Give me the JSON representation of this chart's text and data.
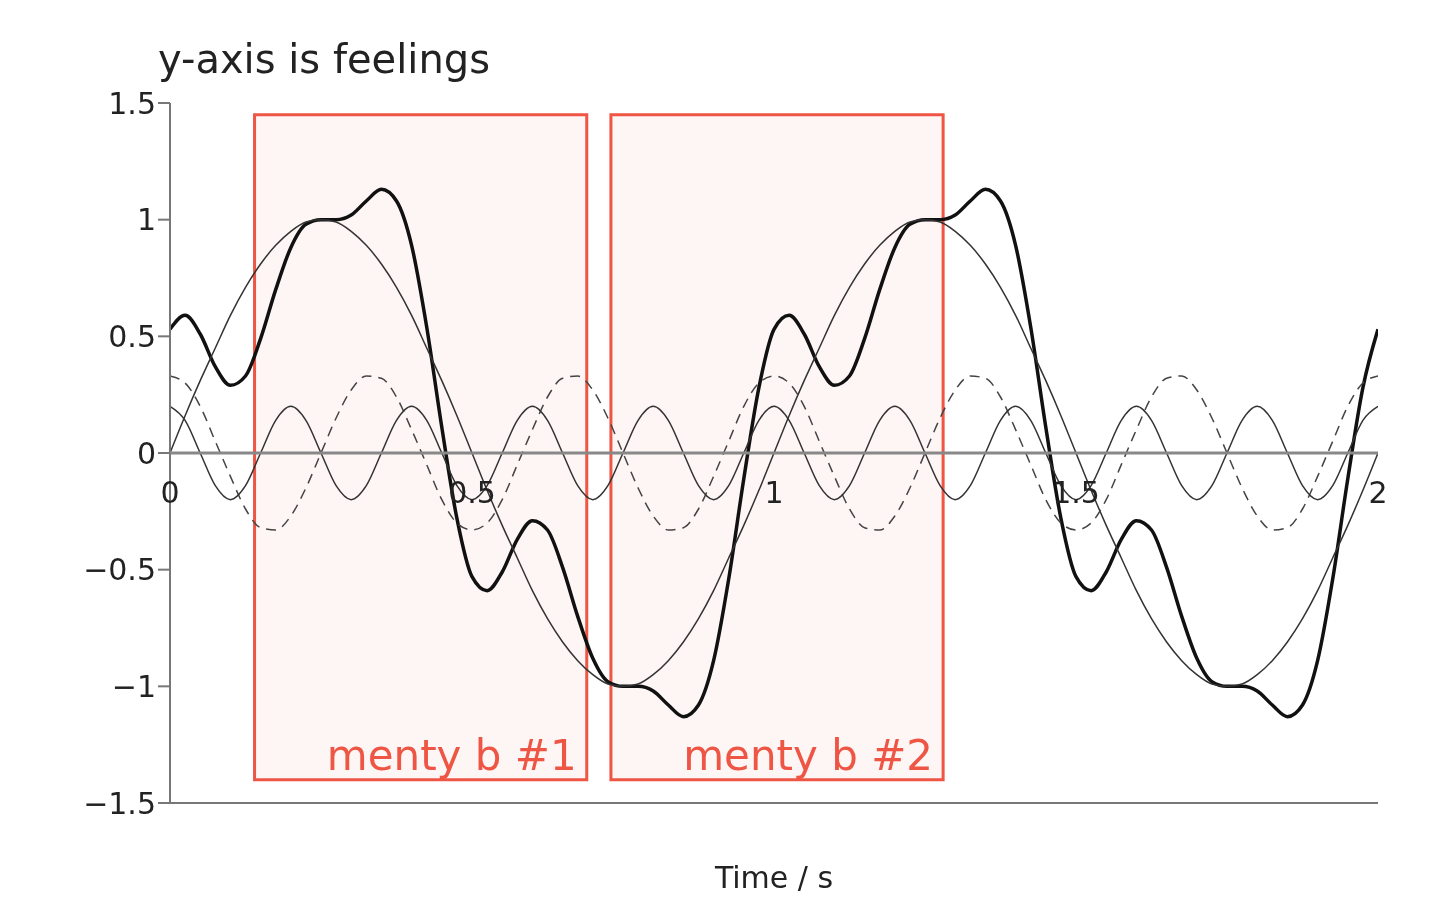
{
  "chart_data": {
    "type": "line",
    "title": "y-axis is feelings",
    "xlabel": "Time / s",
    "x": [
      0,
      0.025,
      0.05,
      0.075,
      0.1,
      0.125,
      0.15,
      0.175,
      0.2,
      0.225,
      0.25,
      0.275,
      0.3,
      0.325,
      0.35,
      0.375,
      0.4,
      0.425,
      0.45,
      0.475,
      0.5,
      0.525,
      0.55,
      0.575,
      0.6,
      0.625,
      0.65,
      0.675,
      0.7,
      0.725,
      0.75,
      0.775,
      0.8,
      0.825,
      0.85,
      0.875,
      0.9,
      0.925,
      0.95,
      0.975,
      1,
      1.025,
      1.05,
      1.075,
      1.1,
      1.125,
      1.15,
      1.175,
      1.2,
      1.225,
      1.25,
      1.275,
      1.3,
      1.325,
      1.35,
      1.375,
      1.4,
      1.425,
      1.45,
      1.475,
      1.5,
      1.525,
      1.55,
      1.575,
      1.6,
      1.625,
      1.65,
      1.675,
      1.7,
      1.725,
      1.75,
      1.775,
      1.8,
      1.825,
      1.85,
      1.875,
      1.9,
      1.925,
      1.95,
      1.975,
      2
    ],
    "series": [
      {
        "color": "#111111",
        "values": [
          0.53,
          0.59,
          0.51,
          0.37,
          0.29,
          0.33,
          0.49,
          0.7,
          0.88,
          0.98,
          1.0,
          1.0,
          1.02,
          1.08,
          1.13,
          1.08,
          0.89,
          0.54,
          0.11,
          -0.28,
          -0.53,
          -0.59,
          -0.51,
          -0.37,
          -0.29,
          -0.33,
          -0.49,
          -0.7,
          -0.88,
          -0.98,
          -1.0,
          -1.0,
          -1.02,
          -1.08,
          -1.13,
          -1.08,
          -0.89,
          -0.54,
          -0.11,
          0.28,
          0.53,
          0.59,
          0.51,
          0.37,
          0.29,
          0.33,
          0.49,
          0.7,
          0.88,
          0.98,
          1.0,
          1.0,
          1.02,
          1.08,
          1.13,
          1.08,
          0.89,
          0.54,
          0.11,
          -0.28,
          -0.53,
          -0.59,
          -0.51,
          -0.37,
          -0.29,
          -0.33,
          -0.49,
          -0.7,
          -0.88,
          -0.98,
          -1.0,
          -1.0,
          -1.02,
          -1.08,
          -1.13,
          -1.08,
          -0.89,
          -0.54,
          -0.11,
          0.28,
          0.53
        ]
      },
      {
        "color": "#333333",
        "values": [
          0,
          0.16,
          0.31,
          0.45,
          0.59,
          0.71,
          0.81,
          0.89,
          0.95,
          0.99,
          1,
          0.99,
          0.95,
          0.89,
          0.81,
          0.71,
          0.59,
          0.45,
          0.31,
          0.16,
          0,
          -0.16,
          -0.31,
          -0.45,
          -0.59,
          -0.71,
          -0.81,
          -0.89,
          -0.95,
          -0.99,
          -1,
          -0.99,
          -0.95,
          -0.89,
          -0.81,
          -0.71,
          -0.59,
          -0.45,
          -0.31,
          -0.16,
          0,
          0.16,
          0.31,
          0.45,
          0.59,
          0.71,
          0.81,
          0.89,
          0.95,
          0.99,
          1,
          0.99,
          0.95,
          0.89,
          0.81,
          0.71,
          0.59,
          0.45,
          0.31,
          0.16,
          0,
          -0.16,
          -0.31,
          -0.45,
          -0.59,
          -0.71,
          -0.81,
          -0.89,
          -0.95,
          -0.99,
          -1,
          -0.99,
          -0.95,
          -0.89,
          -0.81,
          -0.71,
          -0.59,
          -0.45,
          -0.31,
          -0.16,
          0
        ]
      },
      {
        "color": "#444444",
        "line_style": "dashed",
        "values": [
          0.33,
          0.3,
          0.2,
          0.05,
          -0.1,
          -0.24,
          -0.32,
          -0.33,
          -0.27,
          -0.15,
          0,
          0.15,
          0.27,
          0.33,
          0.32,
          0.24,
          0.1,
          -0.05,
          -0.2,
          -0.3,
          -0.33,
          -0.3,
          -0.2,
          -0.05,
          0.1,
          0.24,
          0.32,
          0.33,
          0.27,
          0.15,
          0,
          -0.15,
          -0.27,
          -0.33,
          -0.32,
          -0.24,
          -0.1,
          0.05,
          0.2,
          0.3,
          0.33,
          0.3,
          0.2,
          0.05,
          -0.1,
          -0.24,
          -0.32,
          -0.33,
          -0.27,
          -0.15,
          0,
          0.15,
          0.27,
          0.33,
          0.32,
          0.24,
          0.1,
          -0.05,
          -0.2,
          -0.3,
          -0.33,
          -0.3,
          -0.2,
          -0.05,
          0.1,
          0.24,
          0.32,
          0.33,
          0.27,
          0.15,
          0,
          -0.15,
          -0.27,
          -0.33,
          -0.32,
          -0.24,
          -0.1,
          0.05,
          0.2,
          0.3,
          0.33
        ]
      },
      {
        "color": "#333333",
        "values": [
          0.2,
          0.14,
          0,
          -0.14,
          -0.2,
          -0.14,
          0,
          0.14,
          0.2,
          0.14,
          0,
          -0.14,
          -0.2,
          -0.14,
          0,
          0.14,
          0.2,
          0.14,
          0,
          -0.14,
          -0.2,
          -0.14,
          0,
          0.14,
          0.2,
          0.14,
          0,
          -0.14,
          -0.2,
          -0.14,
          0,
          0.14,
          0.2,
          0.14,
          0,
          -0.14,
          -0.2,
          -0.14,
          0,
          0.14,
          0.2,
          0.14,
          0,
          -0.14,
          -0.2,
          -0.14,
          0,
          0.14,
          0.2,
          0.14,
          0,
          -0.14,
          -0.2,
          -0.14,
          0,
          0.14,
          0.2,
          0.14,
          0,
          -0.14,
          -0.2,
          -0.14,
          0,
          0.14,
          0.2,
          0.14,
          0,
          -0.14,
          -0.2,
          -0.14,
          0,
          0.14,
          0.2,
          0.14,
          0,
          -0.14,
          -0.2,
          -0.14,
          0,
          0.14,
          0.2
        ]
      }
    ],
    "xlim": [
      0,
      2
    ],
    "xticks": [
      0,
      0.5,
      1,
      1.5,
      2
    ],
    "ylim": [
      -1.5,
      1.5
    ],
    "yticks": [
      -1.5,
      -1,
      -0.5,
      0,
      0.5,
      1,
      1.5
    ],
    "line_style": "solid",
    "grid": false,
    "legend": false,
    "bands": [
      {
        "axis": "x",
        "from": 0.14,
        "to": 0.69,
        "label": "menty b #1",
        "color": "#ee5544"
      },
      {
        "axis": "x",
        "from": 0.73,
        "to": 1.28,
        "label": "menty b #2",
        "color": "#ee5544"
      }
    ]
  }
}
